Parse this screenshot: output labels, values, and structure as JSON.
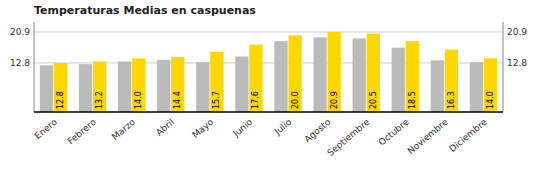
{
  "chart_data": {
    "type": "bar",
    "title": "Temperaturas Medias en caspuenas",
    "categories": [
      "Enero",
      "Febrero",
      "Marzo",
      "Abril",
      "Mayo",
      "Junio",
      "Julio",
      "Agosto",
      "Septiembre",
      "Octubre",
      "Noviembre",
      "Diciembre"
    ],
    "series": [
      {
        "color": "#BBBBBB",
        "values": [
          12.2,
          12.5,
          13.2,
          13.6,
          13.0,
          14.5,
          18.5,
          19.5,
          19.2,
          16.8,
          13.5,
          13.0
        ]
      },
      {
        "color": "#FFD700",
        "values": [
          12.8,
          13.2,
          14.0,
          14.4,
          15.7,
          17.6,
          20.0,
          20.9,
          20.5,
          18.5,
          16.3,
          14.0
        ],
        "value_labels": [
          "12.8",
          "13.2",
          "14.0",
          "14.4",
          "15.7",
          "17.6",
          "20.0",
          "20.9",
          "20.5",
          "18.5",
          "16.3",
          "14.0"
        ],
        "data_labels": true
      }
    ],
    "ylim": [
      0,
      23.5
    ],
    "yticks": [
      12.8,
      20.9
    ],
    "y2lim": [
      0,
      23.5
    ],
    "y2ticks": [
      12.8,
      20.9
    ],
    "grid": true
  }
}
